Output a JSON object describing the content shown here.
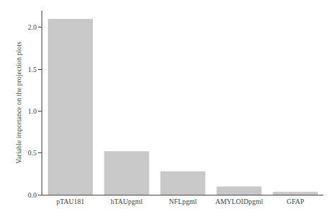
{
  "chart_data": {
    "type": "bar",
    "ylabel": "Variable importance on the projection plots",
    "categories": [
      "pTAU181",
      "hTAUpgml",
      "NFLpgml",
      "AMYLOIDpgml",
      "GFAP"
    ],
    "values": [
      2.1,
      0.52,
      0.28,
      0.1,
      0.035
    ],
    "color": "#c8c8c8",
    "ylim": [
      0,
      2.2
    ],
    "yticks": [
      {
        "value": 0.0,
        "label": "0.0"
      },
      0.5,
      {
        "value": 1.0,
        "label": "1.0"
      },
      1.5,
      {
        "value": 2.0,
        "label": "2.0"
      }
    ],
    "grid": false
  }
}
